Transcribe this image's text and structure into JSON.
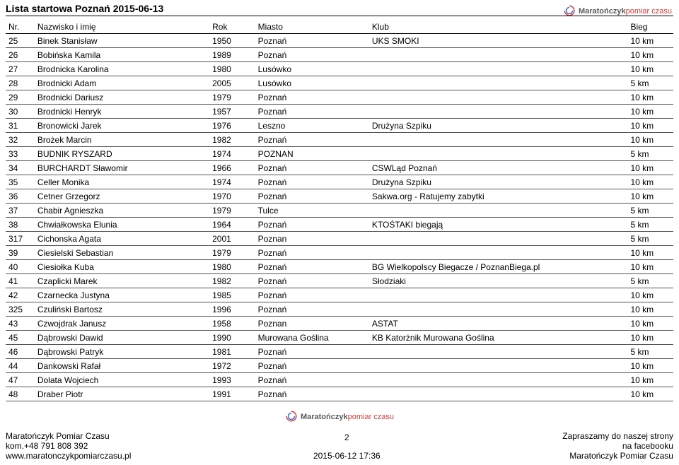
{
  "title": "Lista startowa Poznań  2015-06-13",
  "logo": {
    "main": "Maratończyk",
    "sub": "pomiar czasu"
  },
  "columns": {
    "nr": "Nr.",
    "name": "Nazwisko i imię",
    "year": "Rok",
    "city": "Miasto",
    "club": "Klub",
    "dist": "Bieg"
  },
  "rows": [
    {
      "nr": "25",
      "name": "Binek Stanisław",
      "year": "1950",
      "city": "Poznań",
      "club": "UKS SMOKI",
      "dist": "10 km"
    },
    {
      "nr": "26",
      "name": "Bobińska Kamila",
      "year": "1989",
      "city": "Poznań",
      "club": "",
      "dist": "10 km"
    },
    {
      "nr": "27",
      "name": "Brodnicka Karolina",
      "year": "1980",
      "city": "Lusówko",
      "club": "",
      "dist": "10 km"
    },
    {
      "nr": "28",
      "name": "Brodnicki Adam",
      "year": "2005",
      "city": "Lusówko",
      "club": "",
      "dist": "5 km"
    },
    {
      "nr": "29",
      "name": "Brodnicki Dariusz",
      "year": "1979",
      "city": "Poznań",
      "club": "",
      "dist": "10 km"
    },
    {
      "nr": "30",
      "name": "Brodnicki Henryk",
      "year": "1957",
      "city": "Poznań",
      "club": "",
      "dist": "10 km"
    },
    {
      "nr": "31",
      "name": "Bronowicki Jarek",
      "year": "1976",
      "city": "Leszno",
      "club": "Drużyna Szpiku",
      "dist": "10 km"
    },
    {
      "nr": "32",
      "name": "Brożek Marcin",
      "year": "1982",
      "city": "Poznań",
      "club": "",
      "dist": "10 km"
    },
    {
      "nr": "33",
      "name": "BUDNIK RYSZARD",
      "year": "1974",
      "city": "POZNAN",
      "club": "",
      "dist": "5 km"
    },
    {
      "nr": "34",
      "name": "BURCHARDT Sławomir",
      "year": "1966",
      "city": "Poznań",
      "club": "CSWLąd Poznań",
      "dist": "10 km"
    },
    {
      "nr": "35",
      "name": "Celler Monika",
      "year": "1974",
      "city": "Poznań",
      "club": "Drużyna Szpiku",
      "dist": "10 km"
    },
    {
      "nr": "36",
      "name": "Cetner Grzegorz",
      "year": "1970",
      "city": "Poznań",
      "club": "Sakwa.org - Ratujemy zabytki",
      "dist": "10 km"
    },
    {
      "nr": "37",
      "name": "Chabir Agnieszka",
      "year": "1979",
      "city": "Tulce",
      "club": "",
      "dist": "5 km"
    },
    {
      "nr": "38",
      "name": "Chwiałkowska Elunia",
      "year": "1964",
      "city": "Poznań",
      "club": "KTOŚTAKI biegają",
      "dist": "5 km"
    },
    {
      "nr": "317",
      "name": "Cichonska Agata",
      "year": "2001",
      "city": "Poznan",
      "club": "",
      "dist": "5 km"
    },
    {
      "nr": "39",
      "name": "Ciesielski Sebastian",
      "year": "1979",
      "city": "Poznań",
      "club": "",
      "dist": "10 km"
    },
    {
      "nr": "40",
      "name": "Ciesiołka Kuba",
      "year": "1980",
      "city": "Poznań",
      "club": "BG Wielkopolscy Biegacze / PoznanBiega.pl",
      "dist": "10 km"
    },
    {
      "nr": "41",
      "name": "Czaplicki Marek",
      "year": "1982",
      "city": "Poznań",
      "club": "Słodziaki",
      "dist": "5 km"
    },
    {
      "nr": "42",
      "name": "Czarnecka Justyna",
      "year": "1985",
      "city": "Poznań",
      "club": "",
      "dist": "10 km"
    },
    {
      "nr": "325",
      "name": "Czuliński Bartosz",
      "year": "1996",
      "city": "Poznań",
      "club": "",
      "dist": "10 km"
    },
    {
      "nr": "43",
      "name": "Czwojdrak Janusz",
      "year": "1958",
      "city": "Poznan",
      "club": "ASTAT",
      "dist": "10 km"
    },
    {
      "nr": "45",
      "name": "Dąbrowski Dawid",
      "year": "1990",
      "city": "Murowana Goślina",
      "club": "KB Katorżnik Murowana Goślina",
      "dist": "10 km"
    },
    {
      "nr": "46",
      "name": "Dąbrowski Patryk",
      "year": "1981",
      "city": "Poznań",
      "club": "",
      "dist": "5 km"
    },
    {
      "nr": "44",
      "name": "Dankowski Rafał",
      "year": "1972",
      "city": "Poznań",
      "club": "",
      "dist": "10 km"
    },
    {
      "nr": "47",
      "name": "Dolata Wojciech",
      "year": "1993",
      "city": "Poznań",
      "club": "",
      "dist": "10 km"
    },
    {
      "nr": "48",
      "name": "Draber Piotr",
      "year": "1991",
      "city": "Poznań",
      "club": "",
      "dist": "10 km"
    }
  ],
  "footer": {
    "left1": "Maratończyk Pomiar Czasu",
    "left2": "kom.+48 791 808 392",
    "left3": "www.maratonczykpomiarczasu.pl",
    "centerPage": "2",
    "centerDate": "2015-06-12 17:36",
    "right1": "Zapraszamy do naszej strony",
    "right2": "na facebooku",
    "right3": "Maratończyk Pomiar Czasu"
  },
  "style": {
    "background": "#ffffff",
    "text_color": "#000000",
    "row_border_color": "#555555",
    "header_border_color": "#000000",
    "font_size_body": 12,
    "font_size_title": 14,
    "logo_main_color": "#5a5a5a",
    "logo_sub_color": "#d93a3a",
    "logo_swirl_colors": [
      "#d93a3a",
      "#3a6ad9"
    ]
  }
}
